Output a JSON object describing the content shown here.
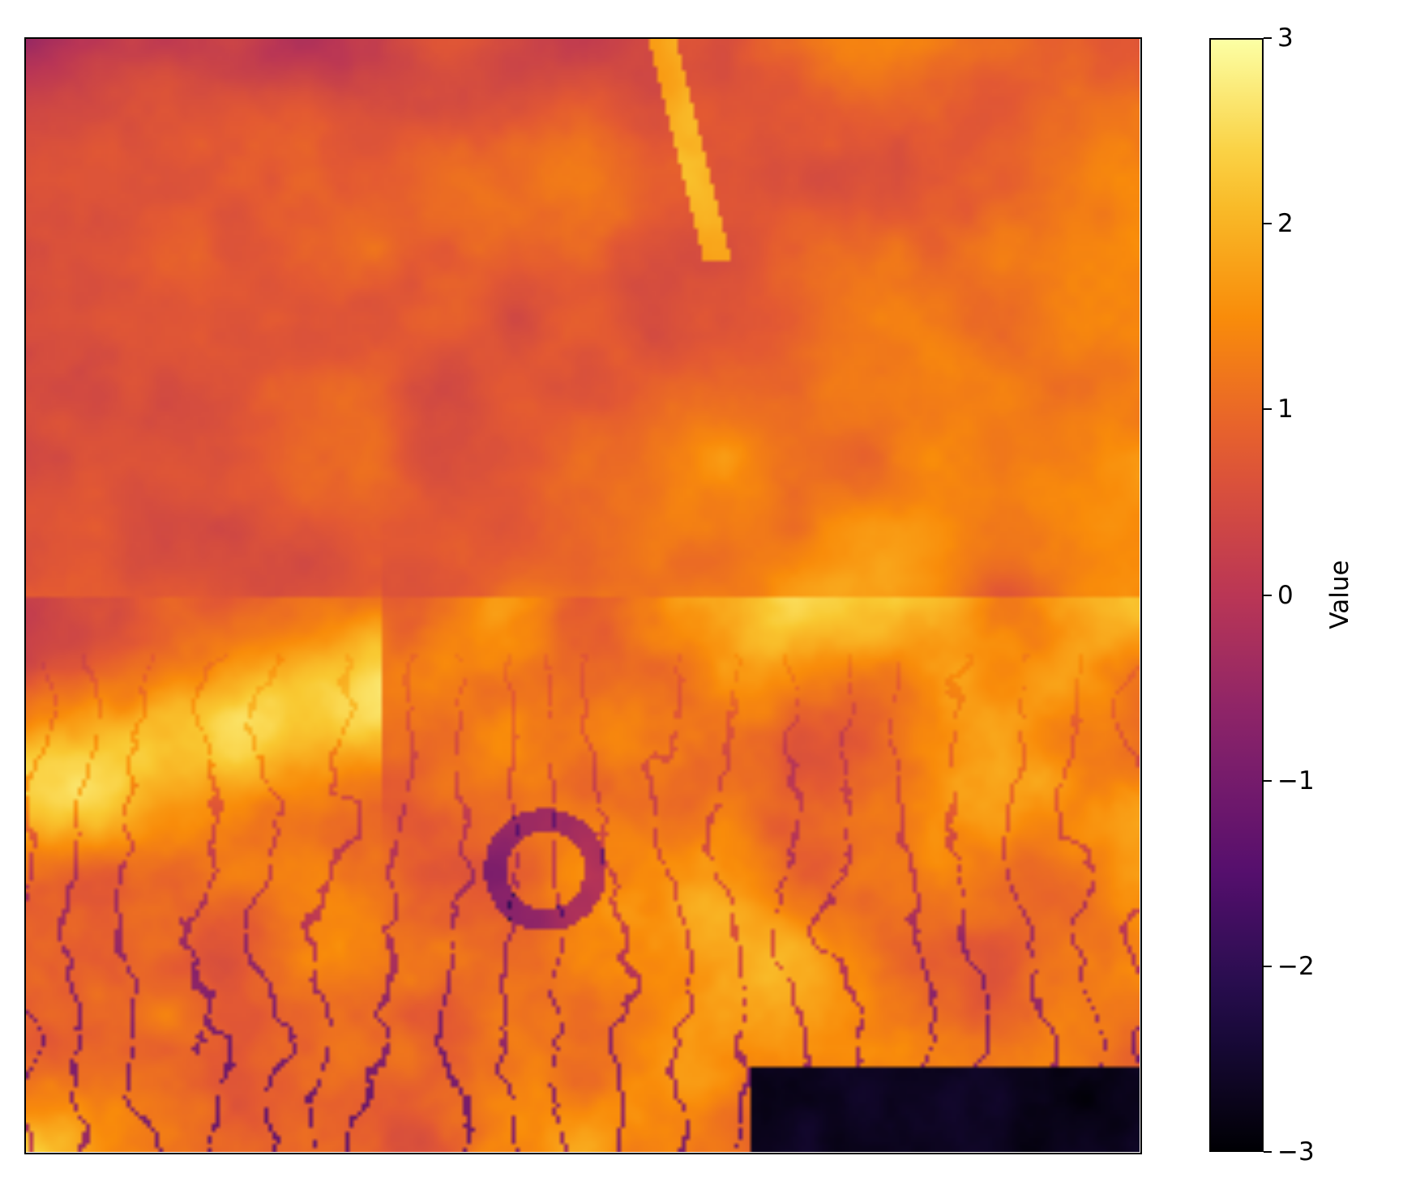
{
  "chart_data": {
    "type": "heatmap",
    "title": "",
    "xlabel": "",
    "ylabel": "",
    "colormap": "inferno",
    "colorbar": {
      "label": "Value",
      "vmin": -3,
      "vmax": 3,
      "ticks": [
        3,
        2,
        1,
        0,
        -1,
        -2,
        -3
      ],
      "tick_labels": [
        "3",
        "2",
        "1",
        "0",
        "−1",
        "−2",
        "−3"
      ]
    },
    "axes_ticks_visible": false,
    "grid": false
  }
}
